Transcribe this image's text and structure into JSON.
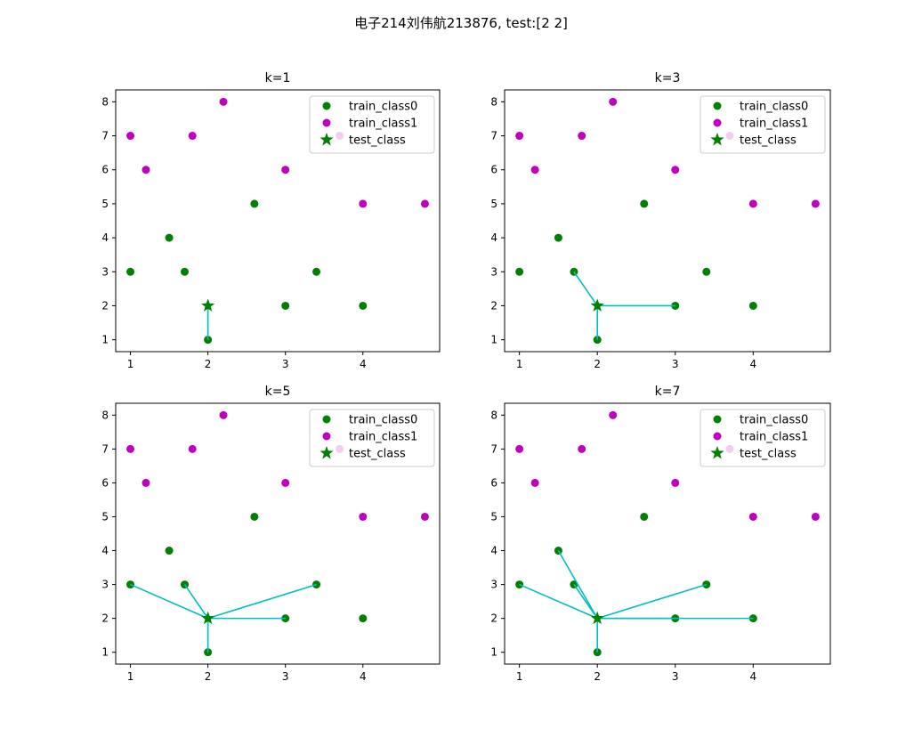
{
  "figure": {
    "suptitle": "电子214刘伟航213876, test:[2 2]"
  },
  "colors": {
    "class0": "#008000",
    "class1": "#bf00bf",
    "test": "#008000",
    "neighbor_line": "#00bfbf"
  },
  "chart_data": [
    {
      "type": "scatter",
      "title": "k=1",
      "k": 1,
      "xlim": [
        0.81,
        4.99
      ],
      "ylim": [
        0.65,
        8.35
      ],
      "xticks": [
        1,
        2,
        3,
        4
      ],
      "yticks": [
        1,
        2,
        3,
        4,
        5,
        6,
        7,
        8
      ],
      "legend": {
        "position": "upper right",
        "labels": [
          "train_class0",
          "train_class1",
          "test_class"
        ]
      },
      "series": [
        {
          "name": "train_class0",
          "marker": "circle",
          "points": [
            [
              1,
              3
            ],
            [
              1.5,
              4
            ],
            [
              1.7,
              3
            ],
            [
              2,
              1
            ],
            [
              2.6,
              5
            ],
            [
              3,
              2
            ],
            [
              3.4,
              3
            ],
            [
              4,
              2
            ]
          ]
        },
        {
          "name": "train_class1",
          "marker": "circle",
          "points": [
            [
              1,
              7
            ],
            [
              1.2,
              6
            ],
            [
              1.8,
              7
            ],
            [
              2.2,
              8
            ],
            [
              3,
              6
            ],
            [
              3.7,
              7
            ],
            [
              4,
              5
            ],
            [
              4.8,
              5
            ]
          ]
        },
        {
          "name": "test_class",
          "marker": "star",
          "points": [
            [
              2,
              2
            ]
          ]
        }
      ],
      "neighbors": [
        [
          2,
          1
        ]
      ]
    },
    {
      "type": "scatter",
      "title": "k=3",
      "k": 3,
      "xlim": [
        0.81,
        4.99
      ],
      "ylim": [
        0.65,
        8.35
      ],
      "xticks": [
        1,
        2,
        3,
        4
      ],
      "yticks": [
        1,
        2,
        3,
        4,
        5,
        6,
        7,
        8
      ],
      "legend": {
        "position": "upper right",
        "labels": [
          "train_class0",
          "train_class1",
          "test_class"
        ]
      },
      "series": [
        {
          "name": "train_class0",
          "marker": "circle",
          "points": [
            [
              1,
              3
            ],
            [
              1.5,
              4
            ],
            [
              1.7,
              3
            ],
            [
              2,
              1
            ],
            [
              2.6,
              5
            ],
            [
              3,
              2
            ],
            [
              3.4,
              3
            ],
            [
              4,
              2
            ]
          ]
        },
        {
          "name": "train_class1",
          "marker": "circle",
          "points": [
            [
              1,
              7
            ],
            [
              1.2,
              6
            ],
            [
              1.8,
              7
            ],
            [
              2.2,
              8
            ],
            [
              3,
              6
            ],
            [
              3.7,
              7
            ],
            [
              4,
              5
            ],
            [
              4.8,
              5
            ]
          ]
        },
        {
          "name": "test_class",
          "marker": "star",
          "points": [
            [
              2,
              2
            ]
          ]
        }
      ],
      "neighbors": [
        [
          1.7,
          3
        ],
        [
          3,
          2
        ],
        [
          2,
          1
        ]
      ]
    },
    {
      "type": "scatter",
      "title": "k=5",
      "k": 5,
      "xlim": [
        0.81,
        4.99
      ],
      "ylim": [
        0.65,
        8.35
      ],
      "xticks": [
        1,
        2,
        3,
        4
      ],
      "yticks": [
        1,
        2,
        3,
        4,
        5,
        6,
        7,
        8
      ],
      "legend": {
        "position": "upper right",
        "labels": [
          "train_class0",
          "train_class1",
          "test_class"
        ]
      },
      "series": [
        {
          "name": "train_class0",
          "marker": "circle",
          "points": [
            [
              1,
              3
            ],
            [
              1.5,
              4
            ],
            [
              1.7,
              3
            ],
            [
              2,
              1
            ],
            [
              2.6,
              5
            ],
            [
              3,
              2
            ],
            [
              3.4,
              3
            ],
            [
              4,
              2
            ]
          ]
        },
        {
          "name": "train_class1",
          "marker": "circle",
          "points": [
            [
              1,
              7
            ],
            [
              1.2,
              6
            ],
            [
              1.8,
              7
            ],
            [
              2.2,
              8
            ],
            [
              3,
              6
            ],
            [
              3.7,
              7
            ],
            [
              4,
              5
            ],
            [
              4.8,
              5
            ]
          ]
        },
        {
          "name": "test_class",
          "marker": "star",
          "points": [
            [
              2,
              2
            ]
          ]
        }
      ],
      "neighbors": [
        [
          1,
          3
        ],
        [
          1.7,
          3
        ],
        [
          3,
          2
        ],
        [
          3.4,
          3
        ],
        [
          2,
          1
        ]
      ]
    },
    {
      "type": "scatter",
      "title": "k=7",
      "k": 7,
      "xlim": [
        0.81,
        4.99
      ],
      "ylim": [
        0.65,
        8.35
      ],
      "xticks": [
        1,
        2,
        3,
        4
      ],
      "yticks": [
        1,
        2,
        3,
        4,
        5,
        6,
        7,
        8
      ],
      "legend": {
        "position": "upper right",
        "labels": [
          "train_class0",
          "train_class1",
          "test_class"
        ]
      },
      "series": [
        {
          "name": "train_class0",
          "marker": "circle",
          "points": [
            [
              1,
              3
            ],
            [
              1.5,
              4
            ],
            [
              1.7,
              3
            ],
            [
              2,
              1
            ],
            [
              2.6,
              5
            ],
            [
              3,
              2
            ],
            [
              3.4,
              3
            ],
            [
              4,
              2
            ]
          ]
        },
        {
          "name": "train_class1",
          "marker": "circle",
          "points": [
            [
              1,
              7
            ],
            [
              1.2,
              6
            ],
            [
              1.8,
              7
            ],
            [
              2.2,
              8
            ],
            [
              3,
              6
            ],
            [
              3.7,
              7
            ],
            [
              4,
              5
            ],
            [
              4.8,
              5
            ]
          ]
        },
        {
          "name": "test_class",
          "marker": "star",
          "points": [
            [
              2,
              2
            ]
          ]
        }
      ],
      "neighbors": [
        [
          1,
          3
        ],
        [
          1.5,
          4
        ],
        [
          1.7,
          3
        ],
        [
          3,
          2
        ],
        [
          3.4,
          3
        ],
        [
          4,
          2
        ],
        [
          2,
          1
        ]
      ]
    }
  ]
}
